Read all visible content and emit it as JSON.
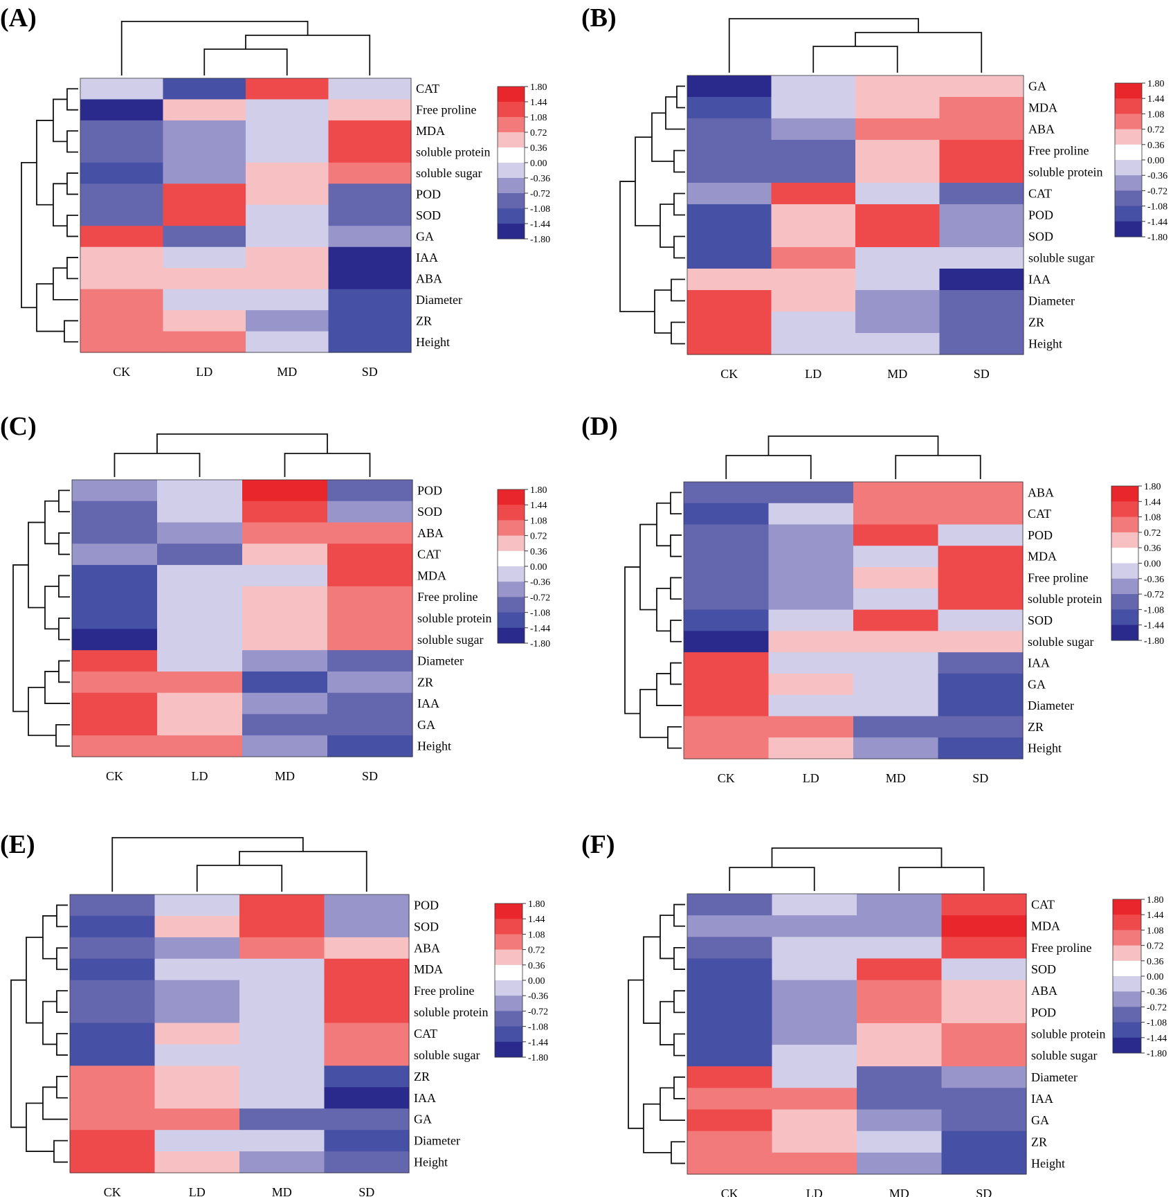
{
  "legend": {
    "ticks": [
      "1.80",
      "1.44",
      "1.08",
      "0.72",
      "0.36",
      "0.00",
      "-0.36",
      "-0.72",
      "-1.08",
      "-1.44",
      "-1.80"
    ],
    "colors": [
      "#e8262b",
      "#ef4a4b",
      "#f27a7a",
      "#f7c0c2",
      "#ffffff",
      "#d0cee8",
      "#9795c9",
      "#6466ae",
      "#4650a4",
      "#2a2a8c"
    ]
  },
  "chart_data": [
    {
      "type": "heatmap",
      "panel": "(A)",
      "columns": [
        "CK",
        "LD",
        "MD",
        "SD"
      ],
      "rows": [
        "CAT",
        "Free proline",
        "MDA",
        "soluble protein",
        "soluble sugar",
        "POD",
        "SOD",
        "GA",
        "IAA",
        "ABA",
        "Diameter",
        "ZR",
        "Height"
      ],
      "values": [
        [
          0.0,
          -1.2,
          1.4,
          -0.3
        ],
        [
          -1.6,
          0.5,
          0.0,
          0.5
        ],
        [
          -1.0,
          -0.6,
          0.0,
          1.4
        ],
        [
          -1.0,
          -0.6,
          0.0,
          1.4
        ],
        [
          -1.2,
          -0.6,
          0.5,
          0.9
        ],
        [
          -1.0,
          1.4,
          0.5,
          -1.0
        ],
        [
          -1.0,
          1.4,
          0.0,
          -1.0
        ],
        [
          1.4,
          -1.0,
          -0.3,
          -0.6
        ],
        [
          0.5,
          0.0,
          0.5,
          -1.6
        ],
        [
          0.5,
          0.5,
          0.5,
          -1.6
        ],
        [
          0.9,
          0.0,
          0.0,
          -1.2
        ],
        [
          0.9,
          0.5,
          -0.6,
          -1.2
        ],
        [
          0.9,
          0.9,
          -0.3,
          -1.2
        ]
      ]
    },
    {
      "type": "heatmap",
      "panel": "(B)",
      "columns": [
        "CK",
        "LD",
        "MD",
        "SD"
      ],
      "rows": [
        "GA",
        "MDA",
        "ABA",
        "Free proline",
        "soluble protein",
        "CAT",
        "POD",
        "SOD",
        "soluble sugar",
        "IAA",
        "Diameter",
        "ZR",
        "Height"
      ],
      "values": [
        [
          -1.6,
          0.0,
          0.5,
          0.5
        ],
        [
          -1.2,
          -0.3,
          0.5,
          0.9
        ],
        [
          -1.0,
          -0.6,
          0.9,
          0.9
        ],
        [
          -1.0,
          -1.0,
          0.5,
          1.4
        ],
        [
          -1.0,
          -1.0,
          0.5,
          1.4
        ],
        [
          -0.6,
          1.4,
          0.0,
          -1.0
        ],
        [
          -1.2,
          0.5,
          1.4,
          -0.6
        ],
        [
          -1.2,
          0.5,
          1.4,
          -0.6
        ],
        [
          -1.2,
          0.9,
          0.0,
          0.0
        ],
        [
          0.5,
          0.5,
          0.0,
          -1.6
        ],
        [
          1.4,
          0.5,
          -0.6,
          -1.0
        ],
        [
          1.4,
          0.0,
          -0.6,
          -1.0
        ],
        [
          1.4,
          0.0,
          -0.3,
          -1.0
        ]
      ]
    },
    {
      "type": "heatmap",
      "panel": "(C)",
      "columns": [
        "CK",
        "LD",
        "MD",
        "SD"
      ],
      "rows": [
        "POD",
        "SOD",
        "ABA",
        "CAT",
        "MDA",
        "Free proline",
        "soluble protein",
        "soluble sugar",
        "Diameter",
        "ZR",
        "IAA",
        "GA",
        "Height"
      ],
      "values": [
        [
          -0.6,
          -0.3,
          1.7,
          -1.0
        ],
        [
          -1.0,
          0.0,
          1.4,
          -0.6
        ],
        [
          -1.0,
          -0.6,
          0.9,
          0.9
        ],
        [
          -0.6,
          -1.0,
          0.5,
          1.4
        ],
        [
          -1.2,
          -0.3,
          0.0,
          1.4
        ],
        [
          -1.2,
          -0.3,
          0.5,
          0.9
        ],
        [
          -1.2,
          -0.3,
          0.5,
          0.9
        ],
        [
          -1.6,
          0.0,
          0.5,
          0.9
        ],
        [
          1.4,
          -0.3,
          -0.6,
          -1.0
        ],
        [
          0.9,
          0.9,
          -1.2,
          -0.6
        ],
        [
          1.4,
          0.5,
          -0.6,
          -1.0
        ],
        [
          1.4,
          0.5,
          -1.0,
          -1.0
        ],
        [
          0.9,
          0.9,
          -0.6,
          -1.2
        ]
      ]
    },
    {
      "type": "heatmap",
      "panel": "(D)",
      "columns": [
        "CK",
        "LD",
        "MD",
        "SD"
      ],
      "rows": [
        "ABA",
        "CAT",
        "POD",
        "MDA",
        "Free proline",
        "soluble protein",
        "SOD",
        "soluble sugar",
        "IAA",
        "GA",
        "Diameter",
        "ZR",
        "Height"
      ],
      "values": [
        [
          -1.0,
          -1.0,
          0.9,
          0.9
        ],
        [
          -1.2,
          -0.3,
          0.9,
          0.9
        ],
        [
          -1.0,
          -0.6,
          1.4,
          0.0
        ],
        [
          -1.0,
          -0.6,
          -0.3,
          1.4
        ],
        [
          -1.0,
          -0.6,
          0.5,
          1.4
        ],
        [
          -1.0,
          -0.6,
          0.0,
          1.4
        ],
        [
          -1.2,
          -0.3,
          1.4,
          -0.3
        ],
        [
          -1.6,
          0.5,
          0.5,
          0.5
        ],
        [
          1.4,
          -0.3,
          -0.3,
          -1.0
        ],
        [
          1.4,
          0.5,
          -0.3,
          -1.2
        ],
        [
          1.4,
          0.0,
          0.0,
          -1.2
        ],
        [
          0.9,
          0.9,
          -1.0,
          -1.0
        ],
        [
          0.9,
          0.5,
          -0.6,
          -1.2
        ]
      ]
    },
    {
      "type": "heatmap",
      "panel": "(E)",
      "columns": [
        "CK",
        "LD",
        "MD",
        "SD"
      ],
      "rows": [
        "POD",
        "SOD",
        "ABA",
        "MDA",
        "Free proline",
        "soluble protein",
        "CAT",
        "soluble sugar",
        "ZR",
        "IAA",
        "GA",
        "Diameter",
        "Height"
      ],
      "values": [
        [
          -1.0,
          -0.3,
          1.4,
          -0.6
        ],
        [
          -1.2,
          0.5,
          1.4,
          -0.6
        ],
        [
          -1.0,
          -0.6,
          0.9,
          0.5
        ],
        [
          -1.2,
          -0.3,
          0.0,
          1.4
        ],
        [
          -1.0,
          -0.6,
          0.0,
          1.4
        ],
        [
          -1.0,
          -0.6,
          -0.3,
          1.4
        ],
        [
          -1.2,
          0.5,
          -0.3,
          0.9
        ],
        [
          -1.2,
          0.0,
          0.0,
          0.9
        ],
        [
          0.9,
          0.5,
          0.0,
          -1.2
        ],
        [
          0.9,
          0.5,
          0.0,
          -1.6
        ],
        [
          0.9,
          0.9,
          -1.0,
          -1.0
        ],
        [
          1.4,
          0.0,
          -0.3,
          -1.2
        ],
        [
          1.4,
          0.5,
          -0.6,
          -1.0
        ]
      ]
    },
    {
      "type": "heatmap",
      "panel": "(F)",
      "columns": [
        "CK",
        "LD",
        "MD",
        "SD"
      ],
      "rows": [
        "CAT",
        "MDA",
        "Free proline",
        "SOD",
        "ABA",
        "POD",
        "soluble protein",
        "soluble sugar",
        "Diameter",
        "IAA",
        "GA",
        "ZR",
        "Height"
      ],
      "values": [
        [
          -1.0,
          0.0,
          -0.6,
          1.4
        ],
        [
          -0.6,
          -0.6,
          -0.6,
          1.7
        ],
        [
          -1.0,
          -0.3,
          -0.3,
          1.4
        ],
        [
          -1.2,
          0.0,
          1.4,
          -0.3
        ],
        [
          -1.2,
          -0.6,
          0.9,
          0.5
        ],
        [
          -1.2,
          -0.6,
          0.9,
          0.5
        ],
        [
          -1.2,
          -0.6,
          0.5,
          0.9
        ],
        [
          -1.2,
          -0.3,
          0.5,
          0.9
        ],
        [
          1.4,
          0.0,
          -1.0,
          -0.6
        ],
        [
          0.9,
          0.9,
          -1.0,
          -1.0
        ],
        [
          1.4,
          0.5,
          -0.6,
          -1.0
        ],
        [
          0.9,
          0.5,
          -0.3,
          -1.2
        ],
        [
          0.9,
          0.9,
          -0.6,
          -1.2
        ]
      ]
    }
  ]
}
